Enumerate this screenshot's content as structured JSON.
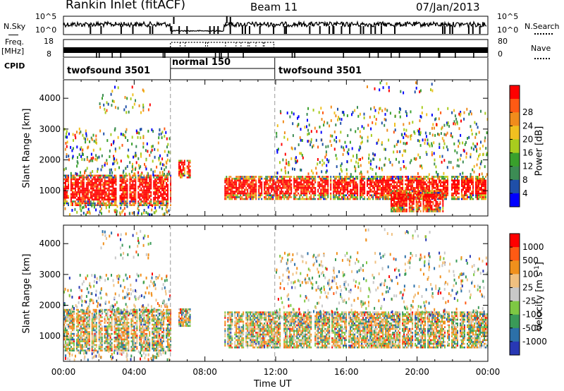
{
  "header": {
    "title": "Rankin Inlet (fitACF)",
    "beam": "Beam 11",
    "date": "07/Jan/2013"
  },
  "status_panels": {
    "nsky_label": "N.Sky",
    "nsky_ticks": [
      "10^5",
      "10^0"
    ],
    "nsearch_label": "N.Search",
    "freq_label": "Freq.",
    "freq_unit": "[MHz]",
    "freq_ticks": [
      "18",
      "8"
    ],
    "nave_ticks": [
      "80",
      "0"
    ],
    "nave_label": "Nave",
    "cpid_label": "CPID",
    "cpid_segments": [
      {
        "label": "twofsound 3501",
        "start_hour": 0,
        "end_hour": 6
      },
      {
        "label": "normal 150",
        "start_hour": 6,
        "end_hour": 12
      },
      {
        "label": "twofsound 3501",
        "start_hour": 12,
        "end_hour": 24
      }
    ]
  },
  "chart_data": [
    {
      "type": "heatmap",
      "title": "",
      "xlabel": "Time UT",
      "ylabel": "Slant Range [km]",
      "x_ticks": [
        "00:00",
        "04:00",
        "08:00",
        "12:00",
        "16:00",
        "20:00",
        "00:00"
      ],
      "xlim_hours": [
        0,
        24
      ],
      "y_ticks": [
        1000,
        2000,
        3000,
        4000
      ],
      "ylim_km": [
        180,
        4600
      ],
      "colorbar": {
        "label": "Power [dB]",
        "tick_labels": [
          "4",
          "8",
          "12",
          "16",
          "20",
          "24",
          "28"
        ],
        "colors": [
          "#0000ff",
          "#1f4fa8",
          "#3c8c54",
          "#39a02c",
          "#a8cc1e",
          "#f0c020",
          "#f08c1c",
          "#ff5a14",
          "#ff0000"
        ]
      },
      "echo_bands": [
        {
          "start_hour": 0,
          "end_hour": 6.1,
          "min_km": 500,
          "max_km": 1500,
          "dominant": "28+"
        },
        {
          "start_hour": 6.5,
          "end_hour": 7.2,
          "min_km": 1400,
          "max_km": 2000,
          "dominant": "12-16"
        },
        {
          "start_hour": 9.1,
          "end_hour": 24,
          "min_km": 700,
          "max_km": 1450,
          "dominant": "28+"
        },
        {
          "start_hour": 18.5,
          "end_hour": 21.5,
          "min_km": 300,
          "max_km": 1000,
          "dominant": "28+"
        }
      ]
    },
    {
      "type": "heatmap",
      "title": "",
      "xlabel": "Time UT",
      "ylabel": "Slant Range [km]",
      "x_ticks": [
        "00:00",
        "04:00",
        "08:00",
        "12:00",
        "16:00",
        "20:00",
        "00:00"
      ],
      "xlim_hours": [
        0,
        24
      ],
      "y_ticks": [
        1000,
        2000,
        3000,
        4000
      ],
      "ylim_km": [
        180,
        4600
      ],
      "colorbar": {
        "label": "Velocity [m s^-1]",
        "tick_labels": [
          "1000",
          "500",
          "100",
          "25",
          "-25",
          "-100",
          "-500",
          "-1000"
        ],
        "colors": [
          "#2838b4",
          "#2c70a8",
          "#3a9a58",
          "#7ec843",
          "#c8c8c8",
          "#f0c080",
          "#f0901c",
          "#ff5a14",
          "#ff0000"
        ]
      },
      "echo_bands": [
        {
          "start_hour": 0,
          "end_hour": 6.1,
          "min_km": 500,
          "max_km": 1900,
          "dominant": "-100 to -500"
        },
        {
          "start_hour": 6.5,
          "end_hour": 7.2,
          "min_km": 1300,
          "max_km": 1900,
          "dominant": "-100 to -500"
        },
        {
          "start_hour": 9.1,
          "end_hour": 24,
          "min_km": 600,
          "max_km": 1800,
          "dominant": "-100 to 100"
        }
      ]
    }
  ]
}
